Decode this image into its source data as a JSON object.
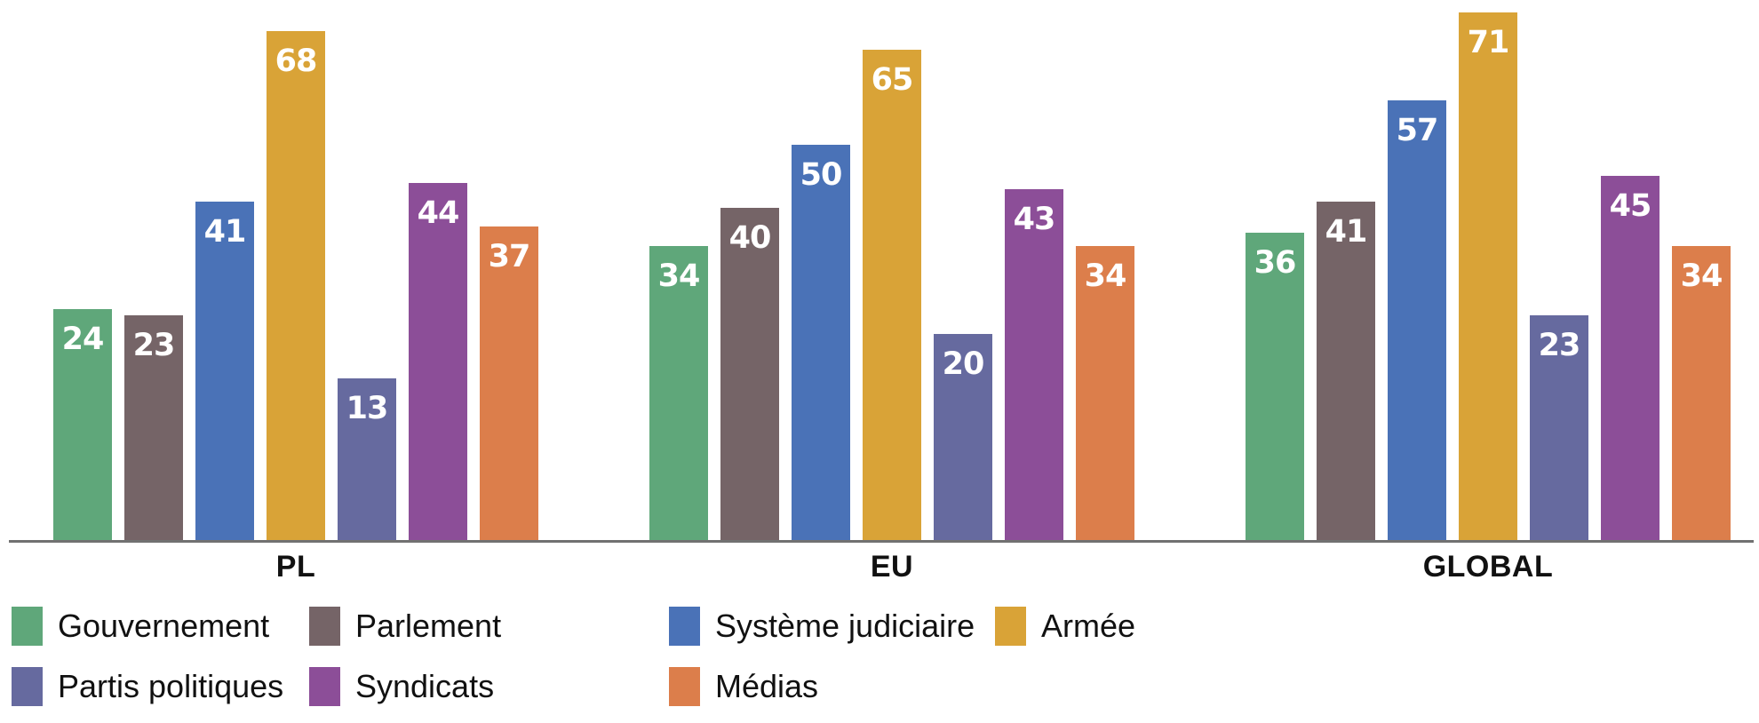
{
  "chart_data": {
    "type": "bar",
    "title": "",
    "xlabel": "",
    "ylabel": "",
    "categories": [
      "PL",
      "EU",
      "GLOBAL"
    ],
    "series": [
      {
        "name": "Gouvernement",
        "color": "#5FA77A",
        "values": [
          24,
          34,
          36
        ]
      },
      {
        "name": "Parlement",
        "color": "#756467",
        "values": [
          23,
          40,
          41
        ]
      },
      {
        "name": "Système judiciaire",
        "color": "#4A72B7",
        "values": [
          41,
          50,
          57
        ]
      },
      {
        "name": "Armée",
        "color": "#D9A337",
        "values": [
          68,
          65,
          71
        ]
      },
      {
        "name": "Partis politiques",
        "color": "#666A9F",
        "values": [
          13,
          20,
          23
        ]
      },
      {
        "name": "Syndicats",
        "color": "#8C4E98",
        "values": [
          44,
          43,
          45
        ]
      },
      {
        "name": "Médias",
        "color": "#DC7E4B",
        "values": [
          37,
          34,
          34
        ]
      }
    ],
    "value_labels": {
      "visible": true,
      "color": "#FFFFFF",
      "position": "inside-top"
    },
    "legend": {
      "position": "bottom-left",
      "rows": [
        [
          "Gouvernement",
          "Parlement",
          "Système judiciaire",
          "Armée"
        ],
        [
          "Partis politiques",
          "Syndicats",
          "Médias"
        ]
      ]
    },
    "axes": {
      "y_axis_visible": false,
      "x_baseline_visible": true,
      "baseline_color": "#717171",
      "grid": false,
      "ylim": [
        0,
        75
      ]
    }
  }
}
